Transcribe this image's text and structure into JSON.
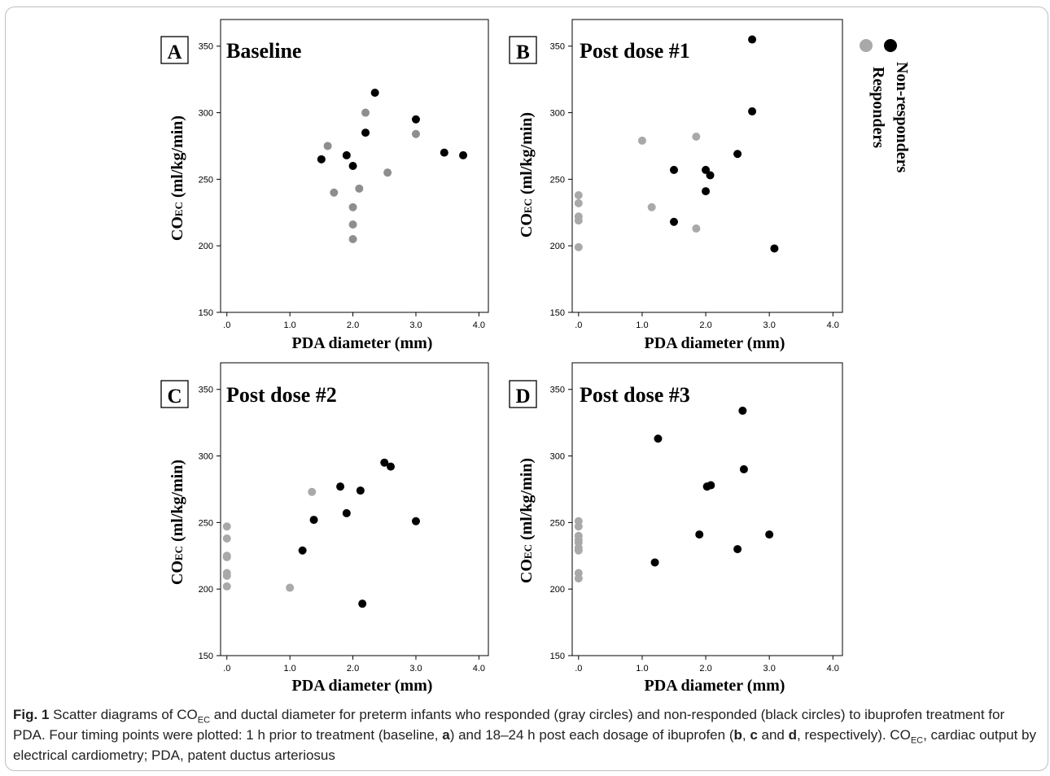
{
  "colors": {
    "responder": "#a9a9a9",
    "responder_dark": "#8e8e8e",
    "nonresponder": "#000000"
  },
  "legend": {
    "responders_label": "Responders",
    "nonresponders_label": "Non-responders"
  },
  "chart_data": [
    {
      "type": "scatter",
      "panel_letter": "A",
      "title": "Baseline",
      "xlabel": "PDA diameter (mm)",
      "ylabel": "CO",
      "ylabel_sub": "EC",
      "ylabel_rest": " (ml/kg/min)",
      "xlim": [
        -0.1,
        4.15
      ],
      "ylim": [
        150,
        370
      ],
      "xticks": [
        {
          "v": 0,
          "label": ".0"
        },
        {
          "v": 1,
          "label": "1.0"
        },
        {
          "v": 2,
          "label": "2.0"
        },
        {
          "v": 3,
          "label": "3.0"
        },
        {
          "v": 4,
          "label": "4.0"
        }
      ],
      "yticks": [
        {
          "v": 150,
          "label": "150"
        },
        {
          "v": 200,
          "label": "200"
        },
        {
          "v": 250,
          "label": "250"
        },
        {
          "v": 300,
          "label": "300"
        },
        {
          "v": 350,
          "label": "350"
        }
      ],
      "series": [
        {
          "name": "Responders",
          "color": "#8e8e8e",
          "points": [
            [
              1.6,
              275
            ],
            [
              1.7,
              240
            ],
            [
              2.0,
              229
            ],
            [
              2.0,
              216
            ],
            [
              2.0,
              205
            ],
            [
              2.1,
              243
            ],
            [
              2.2,
              300
            ],
            [
              2.55,
              255
            ],
            [
              3.0,
              284
            ]
          ]
        },
        {
          "name": "Non-responders",
          "color": "#000000",
          "points": [
            [
              1.5,
              265
            ],
            [
              1.9,
              268
            ],
            [
              2.0,
              260
            ],
            [
              2.2,
              285
            ],
            [
              2.35,
              315
            ],
            [
              3.0,
              295
            ],
            [
              3.45,
              270
            ],
            [
              3.75,
              268
            ]
          ]
        }
      ]
    },
    {
      "type": "scatter",
      "panel_letter": "B",
      "title": "Post dose #1",
      "xlabel": "PDA diameter (mm)",
      "ylabel": "CO",
      "ylabel_sub": "EC",
      "ylabel_rest": " (ml/kg/min)",
      "xlim": [
        -0.1,
        4.15
      ],
      "ylim": [
        150,
        370
      ],
      "xticks": [
        {
          "v": 0,
          "label": ".0"
        },
        {
          "v": 1,
          "label": "1.0"
        },
        {
          "v": 2,
          "label": "2.0"
        },
        {
          "v": 3,
          "label": "3.0"
        },
        {
          "v": 4,
          "label": "4.0"
        }
      ],
      "yticks": [
        {
          "v": 150,
          "label": "150"
        },
        {
          "v": 200,
          "label": "200"
        },
        {
          "v": 250,
          "label": "250"
        },
        {
          "v": 300,
          "label": "300"
        },
        {
          "v": 350,
          "label": "350"
        }
      ],
      "series": [
        {
          "name": "Responders",
          "color": "#a9a9a9",
          "points": [
            [
              0,
              238
            ],
            [
              0,
              232
            ],
            [
              0,
              222
            ],
            [
              0,
              219
            ],
            [
              0,
              199
            ],
            [
              1.0,
              279
            ],
            [
              1.15,
              229
            ],
            [
              1.85,
              282
            ],
            [
              1.85,
              213
            ]
          ]
        },
        {
          "name": "Non-responders",
          "color": "#000000",
          "points": [
            [
              1.5,
              257
            ],
            [
              1.5,
              218
            ],
            [
              2.0,
              257
            ],
            [
              2.0,
              241
            ],
            [
              2.07,
              253
            ],
            [
              2.5,
              269
            ],
            [
              2.73,
              355
            ],
            [
              2.73,
              301
            ],
            [
              3.08,
              198
            ]
          ]
        }
      ]
    },
    {
      "type": "scatter",
      "panel_letter": "C",
      "title": "Post dose #2",
      "xlabel": "PDA diameter (mm)",
      "ylabel": "CO",
      "ylabel_sub": "EC",
      "ylabel_rest": " (ml/kg/min)",
      "xlim": [
        -0.1,
        4.15
      ],
      "ylim": [
        150,
        370
      ],
      "xticks": [
        {
          "v": 0,
          "label": ".0"
        },
        {
          "v": 1,
          "label": "1.0"
        },
        {
          "v": 2,
          "label": "2.0"
        },
        {
          "v": 3,
          "label": "3.0"
        },
        {
          "v": 4,
          "label": "4.0"
        }
      ],
      "yticks": [
        {
          "v": 150,
          "label": "150"
        },
        {
          "v": 200,
          "label": "200"
        },
        {
          "v": 250,
          "label": "250"
        },
        {
          "v": 300,
          "label": "300"
        },
        {
          "v": 350,
          "label": "350"
        }
      ],
      "series": [
        {
          "name": "Responders",
          "color": "#a9a9a9",
          "points": [
            [
              0,
              247
            ],
            [
              0,
              238
            ],
            [
              0,
              225
            ],
            [
              0,
              224
            ],
            [
              0,
              212
            ],
            [
              0,
              210
            ],
            [
              0,
              202
            ],
            [
              1.0,
              201
            ],
            [
              1.35,
              273
            ]
          ]
        },
        {
          "name": "Non-responders",
          "color": "#000000",
          "points": [
            [
              1.2,
              229
            ],
            [
              1.38,
              252
            ],
            [
              1.8,
              277
            ],
            [
              1.9,
              257
            ],
            [
              2.12,
              274
            ],
            [
              2.15,
              189
            ],
            [
              2.5,
              295
            ],
            [
              2.6,
              292
            ],
            [
              3.0,
              251
            ]
          ]
        }
      ]
    },
    {
      "type": "scatter",
      "panel_letter": "D",
      "title": "Post dose #3",
      "xlabel": "PDA diameter (mm)",
      "ylabel": "CO",
      "ylabel_sub": "EC",
      "ylabel_rest": " (ml/kg/min)",
      "xlim": [
        -0.1,
        4.15
      ],
      "ylim": [
        150,
        370
      ],
      "xticks": [
        {
          "v": 0,
          "label": ".0"
        },
        {
          "v": 1,
          "label": "1.0"
        },
        {
          "v": 2,
          "label": "2.0"
        },
        {
          "v": 3,
          "label": "3.0"
        },
        {
          "v": 4,
          "label": "4.0"
        }
      ],
      "yticks": [
        {
          "v": 150,
          "label": "150"
        },
        {
          "v": 200,
          "label": "200"
        },
        {
          "v": 250,
          "label": "250"
        },
        {
          "v": 300,
          "label": "300"
        },
        {
          "v": 350,
          "label": "350"
        }
      ],
      "series": [
        {
          "name": "Responders",
          "color": "#a9a9a9",
          "points": [
            [
              0,
              251
            ],
            [
              0,
              247
            ],
            [
              0,
              240
            ],
            [
              0,
              237
            ],
            [
              0,
              235
            ],
            [
              0,
              231
            ],
            [
              0,
              229
            ],
            [
              0,
              212
            ],
            [
              0,
              208
            ]
          ]
        },
        {
          "name": "Non-responders",
          "color": "#000000",
          "points": [
            [
              1.2,
              220
            ],
            [
              1.25,
              313
            ],
            [
              1.9,
              241
            ],
            [
              2.02,
              277
            ],
            [
              2.08,
              278
            ],
            [
              2.5,
              230
            ],
            [
              2.58,
              334
            ],
            [
              2.6,
              290
            ],
            [
              3.0,
              241
            ]
          ]
        }
      ]
    }
  ],
  "caption": {
    "fig_label": "Fig. 1",
    "s1": " Scatter diagrams of CO",
    "sub1": "EC",
    "s2": " and ductal diameter for preterm infants who responded (gray circles) and non-responded (black circles) to ibuprofen treatment for PDA. Four timing points were plotted: 1 h prior to treatment (baseline, ",
    "b_a": "a",
    "s3": ") and 18–24 h post each dosage of ibuprofen (",
    "b_b": "b",
    "s4": ", ",
    "b_c": "c",
    "s5": " and ",
    "b_d": "d",
    "s6": ", respectively). CO",
    "sub2": "EC",
    "s7": ", cardiac output by electrical cardiometry; PDA, patent ductus arteriosus"
  }
}
